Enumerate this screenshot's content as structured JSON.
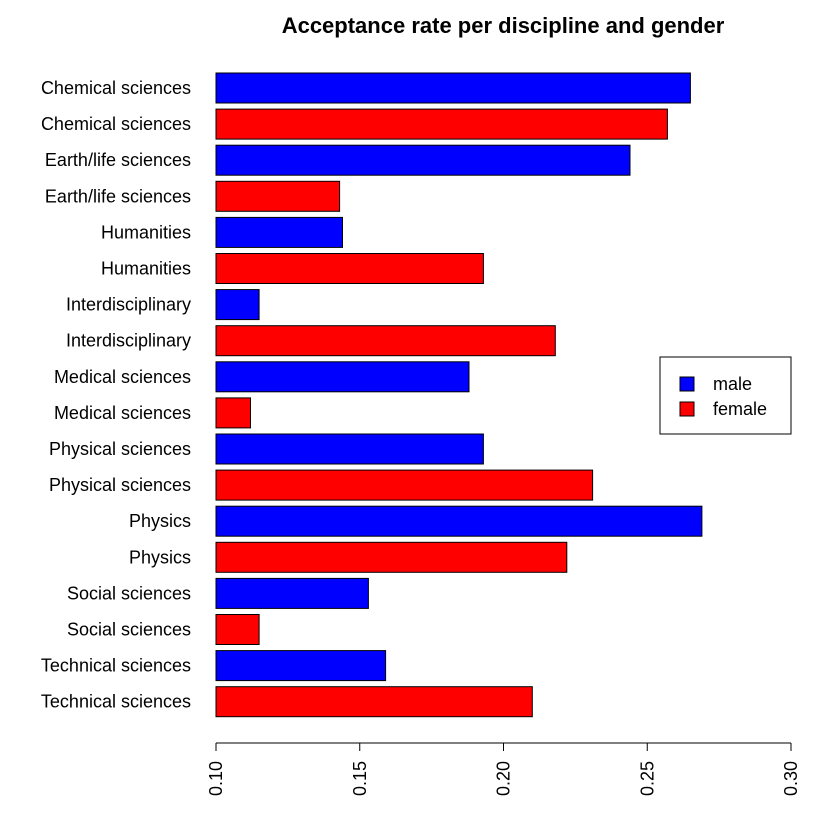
{
  "chart_data": {
    "type": "bar",
    "orientation": "horizontal",
    "title": "Acceptance rate per discipline and gender",
    "xlim": [
      0.1,
      0.3
    ],
    "x_ticks": [
      "0.10",
      "0.15",
      "0.20",
      "0.25",
      "0.30"
    ],
    "x_tick_values": [
      0.1,
      0.15,
      0.2,
      0.25,
      0.3
    ],
    "grid": false,
    "legend_position": "right",
    "legend": [
      {
        "label": "male",
        "color": "#0000FF"
      },
      {
        "label": "female",
        "color": "#FF0000"
      }
    ],
    "bars": [
      {
        "category": "Chemical sciences",
        "gender": "male",
        "value": 0.265
      },
      {
        "category": "Chemical sciences",
        "gender": "female",
        "value": 0.257
      },
      {
        "category": "Earth/life sciences",
        "gender": "male",
        "value": 0.244
      },
      {
        "category": "Earth/life sciences",
        "gender": "female",
        "value": 0.143
      },
      {
        "category": "Humanities",
        "gender": "male",
        "value": 0.144
      },
      {
        "category": "Humanities",
        "gender": "female",
        "value": 0.193
      },
      {
        "category": "Interdisciplinary",
        "gender": "male",
        "value": 0.115
      },
      {
        "category": "Interdisciplinary",
        "gender": "female",
        "value": 0.218
      },
      {
        "category": "Medical sciences",
        "gender": "male",
        "value": 0.188
      },
      {
        "category": "Medical sciences",
        "gender": "female",
        "value": 0.112
      },
      {
        "category": "Physical sciences",
        "gender": "male",
        "value": 0.193
      },
      {
        "category": "Physical sciences",
        "gender": "female",
        "value": 0.231
      },
      {
        "category": "Physics",
        "gender": "male",
        "value": 0.269
      },
      {
        "category": "Physics",
        "gender": "female",
        "value": 0.222
      },
      {
        "category": "Social sciences",
        "gender": "male",
        "value": 0.153
      },
      {
        "category": "Social sciences",
        "gender": "female",
        "value": 0.115
      },
      {
        "category": "Technical sciences",
        "gender": "male",
        "value": 0.159
      },
      {
        "category": "Technical sciences",
        "gender": "female",
        "value": 0.21
      }
    ]
  }
}
